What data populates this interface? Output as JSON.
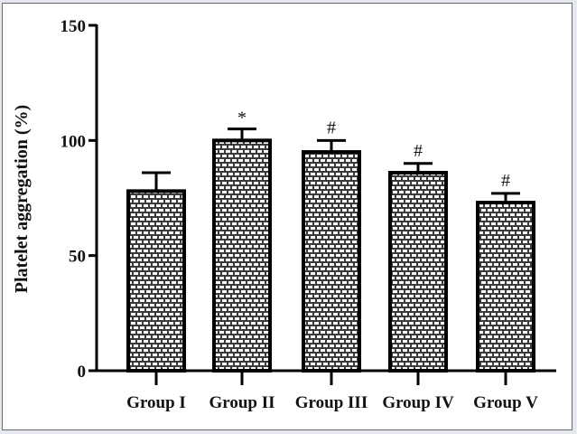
{
  "chart_data": {
    "type": "bar",
    "title": "",
    "xlabel": "",
    "ylabel": "Platelet aggregation (%)",
    "ylim": [
      0,
      150
    ],
    "yticks": [
      0,
      50,
      100,
      150
    ],
    "categories": [
      "Group I",
      "Group II",
      "Group III",
      "Group IV",
      "Group V"
    ],
    "values": [
      78,
      100,
      95,
      86,
      73
    ],
    "error_upper": [
      86,
      105,
      100,
      90,
      77
    ],
    "significance": [
      "",
      "*",
      "#",
      "#",
      "#"
    ],
    "grid": false,
    "legend": null,
    "bar_pattern": "brick"
  },
  "colors": {
    "bar_outline": "#000000",
    "pattern": "#3a3a3a",
    "background": "#ffffff",
    "page": "#e6e8f0"
  }
}
